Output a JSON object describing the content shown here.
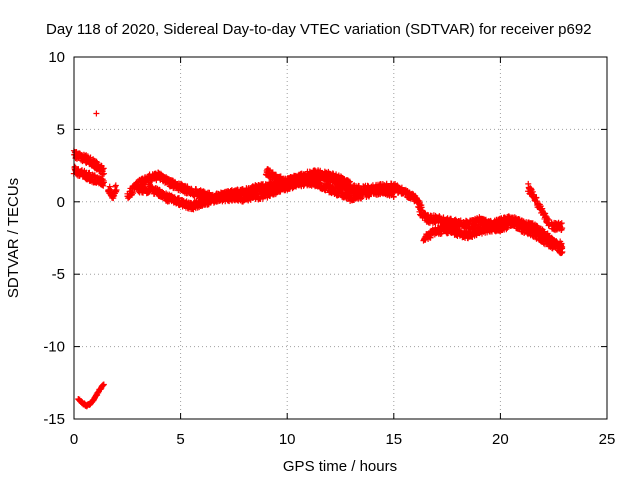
{
  "chart_data": {
    "type": "scatter",
    "title": "Day 118 of 2020, Sidereal Day-to-day VTEC variation (SDTVAR) for receiver p692",
    "xlabel": "GPS time / hours",
    "ylabel": "SDTVAR / TECUs",
    "xlim": [
      0,
      25
    ],
    "ylim": [
      -15,
      10
    ],
    "xticks": [
      "0",
      "5",
      "10",
      "15",
      "20",
      "25"
    ],
    "yticks": [
      "10",
      "5",
      "0",
      "-5",
      "-10",
      "-15"
    ],
    "grid": true,
    "marker": "+",
    "color": "#ff0000",
    "series": [
      {
        "name": "SDTVAR",
        "bands": [
          [
            [
              0.0,
              3.3
            ],
            [
              0.8,
              2.8
            ],
            [
              1.4,
              2.1
            ]
          ],
          [
            [
              0.0,
              2.2
            ],
            [
              0.6,
              1.8
            ],
            [
              1.4,
              1.3
            ]
          ],
          [
            [
              1.6,
              1.0
            ],
            [
              1.8,
              0.4
            ],
            [
              2.0,
              1.0
            ]
          ],
          [
            [
              2.5,
              0.4
            ],
            [
              3.0,
              1.2
            ],
            [
              3.5,
              1.6
            ],
            [
              4.0,
              1.8
            ],
            [
              4.5,
              1.3
            ],
            [
              5.0,
              1.0
            ],
            [
              5.5,
              0.7
            ],
            [
              6.0,
              0.5
            ],
            [
              6.5,
              0.3
            ],
            [
              7.0,
              0.4
            ],
            [
              7.5,
              0.6
            ],
            [
              8.0,
              0.7
            ],
            [
              8.5,
              0.9
            ],
            [
              9.0,
              1.0
            ],
            [
              9.5,
              1.2
            ],
            [
              10.0,
              1.4
            ],
            [
              10.5,
              1.6
            ],
            [
              11.0,
              1.7
            ],
            [
              11.5,
              1.8
            ],
            [
              12.0,
              1.6
            ],
            [
              12.5,
              1.2
            ],
            [
              13.0,
              0.9
            ],
            [
              13.5,
              0.8
            ],
            [
              14.0,
              0.9
            ],
            [
              14.5,
              1.0
            ],
            [
              15.0,
              1.0
            ],
            [
              15.5,
              0.7
            ],
            [
              16.0,
              0.2
            ],
            [
              16.3,
              -0.4
            ]
          ],
          [
            [
              3.0,
              0.7
            ],
            [
              3.5,
              0.9
            ],
            [
              4.0,
              0.6
            ],
            [
              4.5,
              0.2
            ],
            [
              5.0,
              0.0
            ],
            [
              5.5,
              -0.3
            ],
            [
              6.0,
              -0.1
            ],
            [
              6.5,
              0.2
            ],
            [
              7.0,
              0.3
            ],
            [
              7.5,
              0.2
            ],
            [
              8.0,
              0.3
            ],
            [
              8.5,
              0.4
            ],
            [
              9.0,
              0.5
            ],
            [
              9.5,
              0.8
            ],
            [
              10.0,
              1.1
            ],
            [
              10.5,
              1.3
            ],
            [
              11.0,
              1.4
            ],
            [
              11.5,
              1.2
            ],
            [
              12.0,
              0.9
            ],
            [
              12.5,
              0.6
            ],
            [
              13.0,
              0.3
            ],
            [
              13.5,
              0.5
            ],
            [
              14.0,
              0.7
            ],
            [
              14.5,
              0.8
            ],
            [
              15.0,
              0.6
            ]
          ],
          [
            [
              9.0,
              2.1
            ],
            [
              9.5,
              1.6
            ],
            [
              10.0,
              1.3
            ],
            [
              10.5,
              1.6
            ],
            [
              11.0,
              1.9
            ],
            [
              11.5,
              1.9
            ],
            [
              12.0,
              1.8
            ],
            [
              12.5,
              1.5
            ],
            [
              13.0,
              1.1
            ]
          ],
          [
            [
              16.2,
              -0.6
            ],
            [
              16.6,
              -1.2
            ],
            [
              17.0,
              -1.2
            ],
            [
              17.5,
              -1.4
            ],
            [
              18.0,
              -1.5
            ],
            [
              18.5,
              -1.6
            ],
            [
              19.0,
              -1.3
            ],
            [
              19.5,
              -1.6
            ],
            [
              20.0,
              -1.4
            ],
            [
              20.5,
              -1.2
            ],
            [
              21.0,
              -1.5
            ],
            [
              21.5,
              -1.7
            ],
            [
              22.0,
              -2.2
            ],
            [
              22.5,
              -2.8
            ],
            [
              22.9,
              -3.4
            ]
          ],
          [
            [
              16.4,
              -2.5
            ],
            [
              17.0,
              -2.0
            ],
            [
              17.5,
              -1.9
            ],
            [
              18.0,
              -2.1
            ],
            [
              18.5,
              -2.3
            ],
            [
              19.0,
              -2.0
            ],
            [
              19.5,
              -1.8
            ],
            [
              20.0,
              -1.8
            ],
            [
              20.5,
              -1.5
            ],
            [
              21.0,
              -1.8
            ],
            [
              21.5,
              -2.1
            ],
            [
              22.0,
              -2.6
            ],
            [
              22.5,
              -3.0
            ],
            [
              22.9,
              -3.0
            ]
          ],
          [
            [
              21.3,
              1.0
            ],
            [
              21.7,
              0.0
            ],
            [
              22.0,
              -0.8
            ],
            [
              22.3,
              -1.6
            ]
          ],
          [
            [
              22.4,
              -1.7
            ],
            [
              22.9,
              -1.7
            ]
          ]
        ],
        "curves": [
          [
            [
              0.2,
              -13.6
            ],
            [
              0.4,
              -13.9
            ],
            [
              0.6,
              -14.1
            ],
            [
              0.8,
              -13.9
            ],
            [
              1.0,
              -13.5
            ],
            [
              1.2,
              -13.0
            ],
            [
              1.4,
              -12.6
            ]
          ]
        ],
        "outliers": [
          [
            1.05,
            6.1
          ]
        ]
      }
    ]
  }
}
